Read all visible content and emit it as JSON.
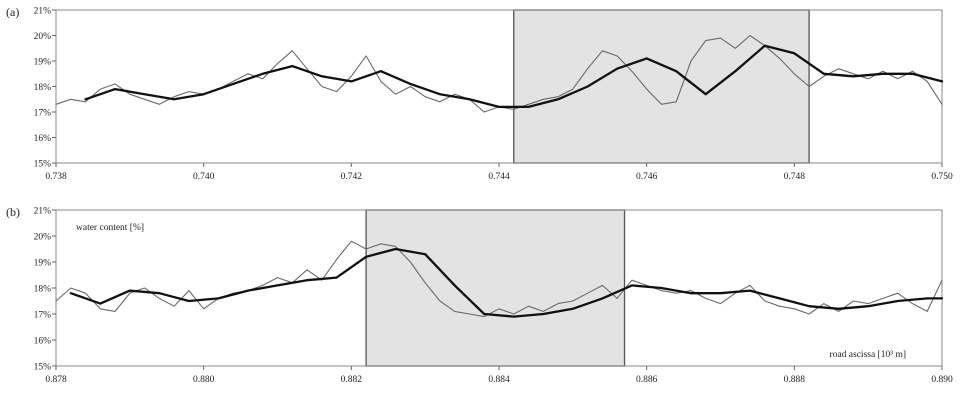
{
  "chart_data": [
    {
      "type": "line",
      "panel_label": "(a)",
      "xlim": [
        0.738,
        0.75
      ],
      "ylim": [
        15,
        21
      ],
      "xticks": [
        "0.738",
        "0.740",
        "0.742",
        "0.744",
        "0.746",
        "0.748",
        "0.750"
      ],
      "yticks": [
        "15%",
        "16%",
        "17%",
        "18%",
        "19%",
        "20%",
        "21%"
      ],
      "grid": false,
      "highlight": [
        0.7442,
        0.7482
      ],
      "xlabel": "",
      "ylabel": "",
      "series": [
        {
          "role": "raw",
          "x": [
            0.738,
            0.7382,
            0.7384,
            0.7386,
            0.7388,
            0.739,
            0.7392,
            0.7394,
            0.7396,
            0.7398,
            0.74,
            0.7402,
            0.7404,
            0.7406,
            0.7408,
            0.741,
            0.7412,
            0.7414,
            0.7416,
            0.7418,
            0.742,
            0.7422,
            0.7424,
            0.7426,
            0.7428,
            0.743,
            0.7432,
            0.7434,
            0.7436,
            0.7438,
            0.744,
            0.7442,
            0.7444,
            0.7446,
            0.7448,
            0.745,
            0.7452,
            0.7454,
            0.7456,
            0.7458,
            0.746,
            0.7462,
            0.7464,
            0.7466,
            0.7468,
            0.747,
            0.7472,
            0.7474,
            0.7476,
            0.7478,
            0.748,
            0.7482,
            0.7484,
            0.7486,
            0.7488,
            0.749,
            0.7492,
            0.7494,
            0.7496,
            0.7498,
            0.75
          ],
          "y": [
            17.3,
            17.5,
            17.4,
            17.9,
            18.1,
            17.7,
            17.5,
            17.3,
            17.6,
            17.8,
            17.7,
            17.9,
            18.2,
            18.5,
            18.3,
            18.9,
            19.4,
            18.7,
            18.0,
            17.8,
            18.4,
            19.2,
            18.2,
            17.7,
            18.0,
            17.6,
            17.4,
            17.7,
            17.5,
            17.0,
            17.2,
            17.1,
            17.3,
            17.5,
            17.6,
            17.9,
            18.7,
            19.4,
            19.2,
            18.6,
            17.9,
            17.3,
            17.4,
            19.0,
            19.8,
            19.9,
            19.5,
            20.0,
            19.6,
            19.1,
            18.5,
            18.0,
            18.4,
            18.7,
            18.5,
            18.3,
            18.6,
            18.3,
            18.6,
            18.2,
            17.3
          ]
        },
        {
          "role": "smoothed",
          "x": [
            0.7384,
            0.7388,
            0.7392,
            0.7396,
            0.74,
            0.7404,
            0.7408,
            0.7412,
            0.7416,
            0.742,
            0.7424,
            0.7428,
            0.7432,
            0.7436,
            0.744,
            0.7444,
            0.7448,
            0.7452,
            0.7456,
            0.746,
            0.7464,
            0.7468,
            0.7472,
            0.7476,
            0.748,
            0.7484,
            0.7488,
            0.7492,
            0.7496,
            0.75
          ],
          "y": [
            17.5,
            17.9,
            17.7,
            17.5,
            17.7,
            18.1,
            18.5,
            18.8,
            18.4,
            18.2,
            18.6,
            18.1,
            17.7,
            17.5,
            17.2,
            17.2,
            17.5,
            18.0,
            18.7,
            19.1,
            18.6,
            17.7,
            18.6,
            19.6,
            19.3,
            18.5,
            18.4,
            18.5,
            18.5,
            18.2
          ]
        }
      ]
    },
    {
      "type": "line",
      "panel_label": "(b)",
      "xlim": [
        0.878,
        0.89
      ],
      "ylim": [
        15,
        21
      ],
      "xticks": [
        "0.878",
        "0.880",
        "0.882",
        "0.884",
        "0.886",
        "0.888",
        "0.890"
      ],
      "yticks": [
        "15%",
        "16%",
        "17%",
        "18%",
        "19%",
        "20%",
        "21%"
      ],
      "grid": false,
      "highlight": [
        0.8822,
        0.8857
      ],
      "ylabel": "water content [%]",
      "xlabel": "road ascissa [10³ m]",
      "series": [
        {
          "role": "raw",
          "x": [
            0.878,
            0.8782,
            0.8784,
            0.8786,
            0.8788,
            0.879,
            0.8792,
            0.8794,
            0.8796,
            0.8798,
            0.88,
            0.8802,
            0.8804,
            0.8806,
            0.8808,
            0.881,
            0.8812,
            0.8814,
            0.8816,
            0.8818,
            0.882,
            0.8822,
            0.8824,
            0.8826,
            0.8828,
            0.883,
            0.8832,
            0.8834,
            0.8836,
            0.8838,
            0.884,
            0.8842,
            0.8844,
            0.8846,
            0.8848,
            0.885,
            0.8852,
            0.8854,
            0.8856,
            0.8858,
            0.886,
            0.8862,
            0.8864,
            0.8866,
            0.8868,
            0.887,
            0.8872,
            0.8874,
            0.8876,
            0.8878,
            0.888,
            0.8882,
            0.8884,
            0.8886,
            0.8888,
            0.889,
            0.8892,
            0.8894,
            0.8896,
            0.8898,
            0.89
          ],
          "y": [
            17.5,
            18.0,
            17.8,
            17.2,
            17.1,
            17.8,
            18.0,
            17.6,
            17.3,
            17.9,
            17.2,
            17.6,
            17.8,
            17.9,
            18.1,
            18.4,
            18.2,
            18.7,
            18.3,
            19.1,
            19.8,
            19.5,
            19.7,
            19.6,
            19.0,
            18.2,
            17.5,
            17.1,
            17.0,
            16.9,
            17.2,
            17.0,
            17.3,
            17.1,
            17.4,
            17.5,
            17.8,
            18.1,
            17.6,
            18.3,
            18.1,
            17.9,
            17.8,
            17.9,
            17.6,
            17.4,
            17.8,
            18.1,
            17.5,
            17.3,
            17.2,
            17.0,
            17.4,
            17.1,
            17.5,
            17.4,
            17.6,
            17.8,
            17.4,
            17.1,
            18.3
          ]
        },
        {
          "role": "smoothed",
          "x": [
            0.8782,
            0.8786,
            0.879,
            0.8794,
            0.8798,
            0.8802,
            0.8806,
            0.881,
            0.8814,
            0.8818,
            0.8822,
            0.8826,
            0.883,
            0.8834,
            0.8838,
            0.8842,
            0.8846,
            0.885,
            0.8854,
            0.8858,
            0.8862,
            0.8866,
            0.887,
            0.8874,
            0.8878,
            0.8882,
            0.8886,
            0.889,
            0.8894,
            0.8898,
            0.89
          ],
          "y": [
            17.8,
            17.4,
            17.9,
            17.8,
            17.5,
            17.6,
            17.9,
            18.1,
            18.3,
            18.4,
            19.2,
            19.5,
            19.3,
            18.1,
            17.0,
            16.9,
            17.0,
            17.2,
            17.6,
            18.1,
            18.0,
            17.8,
            17.8,
            17.9,
            17.6,
            17.3,
            17.2,
            17.3,
            17.5,
            17.6,
            17.6
          ]
        }
      ]
    }
  ]
}
